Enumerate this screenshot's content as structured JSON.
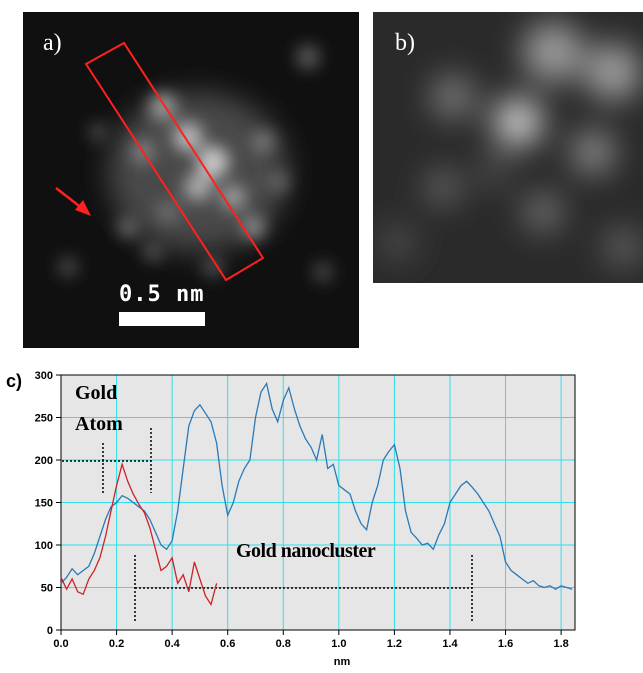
{
  "panels": {
    "a": {
      "label": "a)",
      "scalebar_label": "0.5 nm"
    },
    "b": {
      "label": "b)"
    },
    "c": {
      "label": "c)"
    }
  },
  "colors": {
    "panel_bg": "#101010",
    "roi_box": "#ff2020",
    "arrow": "#ff2020",
    "plot_bg": "#e6e6e6",
    "grid": "#2fe0ea",
    "blue_series": "#2a7ab8",
    "red_series": "#d0202a"
  },
  "chart_data": {
    "type": "line",
    "xlabel": "nm",
    "ylabel": "",
    "xlim": [
      0.0,
      1.85
    ],
    "ylim": [
      0,
      300
    ],
    "xticks": [
      "0.0",
      "0.2",
      "0.4",
      "0.6",
      "0.8",
      "1.0",
      "1.2",
      "1.4",
      "1.6",
      "1.8"
    ],
    "yticks": [
      "0",
      "50",
      "100",
      "150",
      "200",
      "250",
      "300"
    ],
    "grid": true,
    "series": [
      {
        "color": "#2a7ab8",
        "x": [
          0.0,
          0.02,
          0.04,
          0.06,
          0.08,
          0.1,
          0.12,
          0.14,
          0.16,
          0.18,
          0.2,
          0.22,
          0.24,
          0.26,
          0.28,
          0.3,
          0.32,
          0.34,
          0.36,
          0.38,
          0.4,
          0.42,
          0.44,
          0.46,
          0.48,
          0.5,
          0.52,
          0.54,
          0.56,
          0.58,
          0.6,
          0.62,
          0.64,
          0.66,
          0.68,
          0.7,
          0.72,
          0.74,
          0.76,
          0.78,
          0.8,
          0.82,
          0.84,
          0.86,
          0.88,
          0.9,
          0.92,
          0.94,
          0.96,
          0.98,
          1.0,
          1.02,
          1.04,
          1.06,
          1.08,
          1.1,
          1.12,
          1.14,
          1.16,
          1.18,
          1.2,
          1.22,
          1.24,
          1.26,
          1.28,
          1.3,
          1.32,
          1.34,
          1.36,
          1.38,
          1.4,
          1.42,
          1.44,
          1.46,
          1.48,
          1.5,
          1.52,
          1.54,
          1.56,
          1.58,
          1.6,
          1.62,
          1.64,
          1.66,
          1.68,
          1.7,
          1.72,
          1.74,
          1.76,
          1.78,
          1.8,
          1.82,
          1.84
        ],
        "y": [
          55,
          62,
          72,
          65,
          70,
          75,
          90,
          110,
          130,
          145,
          150,
          158,
          155,
          150,
          145,
          140,
          130,
          115,
          100,
          95,
          105,
          140,
          190,
          240,
          258,
          265,
          255,
          245,
          220,
          170,
          135,
          150,
          175,
          190,
          200,
          250,
          280,
          290,
          260,
          245,
          270,
          285,
          260,
          240,
          225,
          215,
          200,
          230,
          190,
          195,
          170,
          165,
          160,
          140,
          125,
          118,
          150,
          170,
          200,
          210,
          218,
          190,
          140,
          115,
          108,
          100,
          102,
          95,
          112,
          125,
          150,
          160,
          170,
          175,
          168,
          160,
          150,
          140,
          125,
          110,
          80,
          70,
          65,
          60,
          55,
          58,
          52,
          50,
          52,
          48,
          52,
          50,
          48
        ]
      },
      {
        "color": "#d0202a",
        "x": [
          0.0,
          0.02,
          0.04,
          0.06,
          0.08,
          0.1,
          0.12,
          0.14,
          0.16,
          0.18,
          0.2,
          0.22,
          0.24,
          0.26,
          0.28,
          0.3,
          0.32,
          0.34,
          0.36,
          0.38,
          0.4,
          0.42,
          0.44,
          0.46,
          0.48,
          0.5,
          0.52,
          0.54,
          0.56
        ],
        "y": [
          62,
          48,
          60,
          45,
          42,
          60,
          70,
          85,
          110,
          140,
          170,
          195,
          175,
          160,
          148,
          138,
          120,
          95,
          70,
          75,
          85,
          55,
          65,
          45,
          80,
          60,
          40,
          30,
          55
        ]
      }
    ],
    "annotations": [
      "Gold Atom",
      "Gold nanocluster"
    ]
  },
  "annotations": {
    "gold_atom_line1": "Gold",
    "gold_atom_line2": "Atom",
    "gold_nanocluster": "Gold nanocluster"
  }
}
